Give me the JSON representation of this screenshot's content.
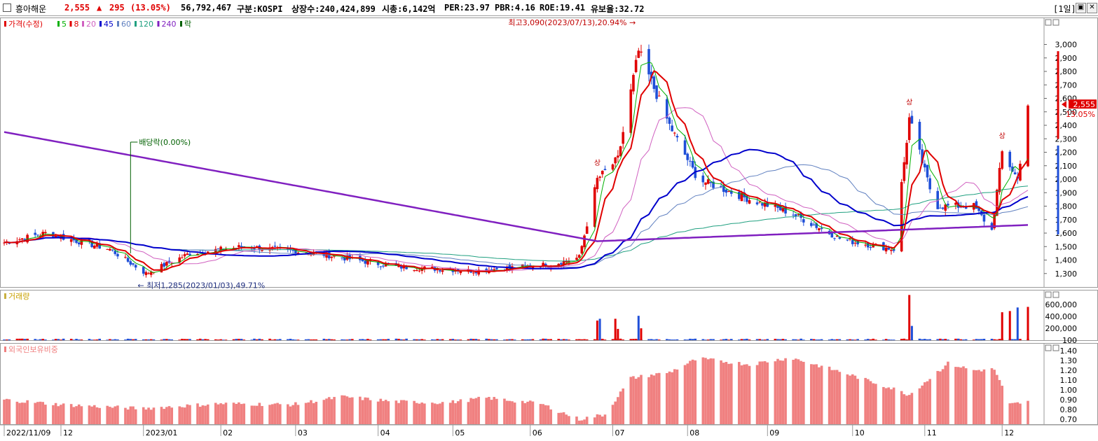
{
  "header": {
    "name": "흥아해운",
    "price": "2,555",
    "arrow": "▲",
    "change": "295",
    "change_pct": "(13.05%)",
    "volume": "56,792,467",
    "market": "구분:KOSPI",
    "shares": "상장수:240,424,899",
    "mktcap": "시총:6,142억",
    "per": "PER:23.97",
    "pbr": "PBR:4.16",
    "roe": "ROE:19.41",
    "float": "유보율:32.72",
    "period": "[1일]",
    "close_icon": "x-icon",
    "max_icon": "restore-icon"
  },
  "colors": {
    "up": "#e00000",
    "down": "#1f4fd8",
    "ma5": "#00b000",
    "ma8": "#e00000",
    "ma20": "#d060c0",
    "ma45": "#0000cc",
    "ma60": "#6080c0",
    "ma120": "#20a080",
    "ma240": "#8020c0",
    "foreign": "#f08080"
  },
  "chart_data": [
    {
      "type": "candlestick",
      "legend": [
        "가격(수정)",
        "5",
        "8",
        "20",
        "45",
        "60",
        "120",
        "240",
        "락"
      ],
      "ylim": [
        1200,
        3200
      ],
      "yticks": [
        1300,
        1400,
        1500,
        1600,
        1700,
        1800,
        1900,
        2000,
        2100,
        2200,
        2300,
        2400,
        2500,
        2600,
        2700,
        2800,
        2900,
        3000
      ],
      "ytick_labels": [
        "1,300",
        "1,400",
        "1,500",
        "1,600",
        "1,700",
        "1,800",
        "1,900",
        "2,000",
        "2,100",
        "2,200",
        "2,300",
        "2,400",
        "2,500",
        "2,600",
        "2,700",
        "2,800",
        "2,900",
        "3,000"
      ],
      "x_labels": [
        "2022/11/09",
        "12",
        "2023/01",
        "02",
        "03",
        "04",
        "05",
        "06",
        "07",
        "08",
        "09",
        "10",
        "11",
        "12"
      ],
      "close_anchor_dates": [
        "2022/11/09",
        "2022/11/25",
        "2022/12/20",
        "2023/01/03",
        "2023/01/20",
        "2023/02/10",
        "2023/03/10",
        "2023/04/10",
        "2023/05/10",
        "2023/06/10",
        "2023/06/20",
        "2023/06/27",
        "2023/07/05",
        "2023/07/13",
        "2023/07/25",
        "2023/08/05",
        "2023/08/25",
        "2023/09/10",
        "2023/09/30",
        "2023/10/20",
        "2023/10/26",
        "2023/11/05",
        "2023/11/20",
        "2023/11/27",
        "2023/12/01",
        "2023/12/07",
        "2023/12/11"
      ],
      "close_anchor_values": [
        1530,
        1600,
        1480,
        1300,
        1450,
        1500,
        1450,
        1350,
        1320,
        1370,
        1420,
        2000,
        2150,
        2950,
        2400,
        2000,
        1850,
        1750,
        1550,
        1480,
        2450,
        1800,
        1800,
        1620,
        2200,
        2000,
        2555
      ],
      "annotations": {
        "high": "최고3,090(2023/07/13),20.94%",
        "low": "최저1,285(2023/01/03),49.71%",
        "dividend": "배당락(0.00%)",
        "up_marker": "상",
        "last_price": "2,555",
        "last_pct": "13.05%"
      }
    },
    {
      "type": "bar",
      "legend": [
        "거래량"
      ],
      "ylim": [
        0,
        800000
      ],
      "yticks": [
        100,
        200000,
        400000,
        600000
      ],
      "ytick_labels": [
        "100",
        "200,000",
        "400,000",
        "600,000"
      ],
      "spike_dates": [
        "2023/06/27",
        "2023/06/28",
        "2023/07/04",
        "2023/07/05",
        "2023/07/13",
        "2023/07/14",
        "2023/10/26",
        "2023/10/27",
        "2023/12/01",
        "2023/12/04",
        "2023/12/07",
        "2023/12/11"
      ],
      "spike_values": [
        330000,
        360000,
        360000,
        190000,
        410000,
        200000,
        760000,
        240000,
        470000,
        490000,
        550000,
        560000
      ]
    },
    {
      "type": "bar",
      "legend": [
        "외국인보유비중"
      ],
      "ylim": [
        0.65,
        1.45
      ],
      "yticks": [
        0.7,
        0.8,
        0.9,
        1.0,
        1.1,
        1.2,
        1.3,
        1.4
      ],
      "ytick_labels": [
        "0.70",
        "0.80",
        "0.90",
        "1.00",
        "1.10",
        "1.20",
        "1.30",
        "1.40"
      ],
      "anchor_dates": [
        "2022/11/09",
        "2022/12/01",
        "2023/01/01",
        "2023/02/01",
        "2023/03/01",
        "2023/03/20",
        "2023/04/10",
        "2023/04/30",
        "2023/05/15",
        "2023/06/05",
        "2023/06/20",
        "2023/06/30",
        "2023/07/10",
        "2023/07/25",
        "2023/08/05",
        "2023/08/25",
        "2023/09/10",
        "2023/09/30",
        "2023/10/20",
        "2023/10/26",
        "2023/11/10",
        "2023/11/20",
        "2023/11/28",
        "2023/12/04",
        "2023/12/11"
      ],
      "anchor_values": [
        0.9,
        0.85,
        0.81,
        0.86,
        0.85,
        0.93,
        0.88,
        0.87,
        0.92,
        0.86,
        0.7,
        0.75,
        1.12,
        1.18,
        1.32,
        1.26,
        1.33,
        1.18,
        1.01,
        0.95,
        1.27,
        1.2,
        1.21,
        0.85,
        0.88
      ]
    }
  ]
}
